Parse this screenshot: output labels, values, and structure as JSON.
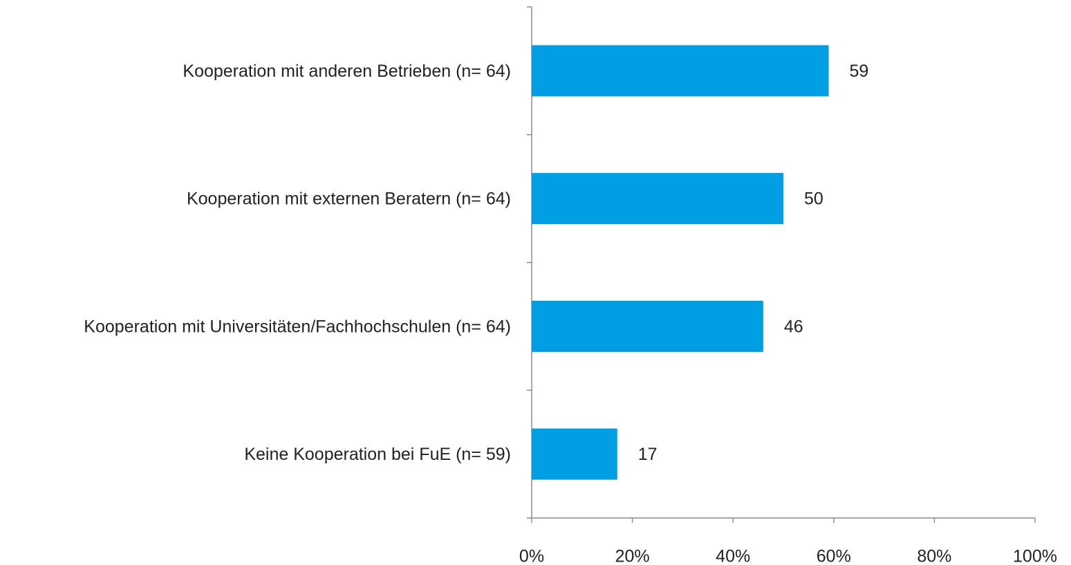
{
  "chart_data": {
    "type": "barh",
    "categories": [
      "Kooperation mit anderen Betrieben (n= 64)",
      "Kooperation mit externen Beratern (n= 64)",
      "Kooperation mit Universitäten/Fachhochschulen (n= 64)",
      "Keine Kooperation bei FuE (n= 59)"
    ],
    "values": [
      59,
      50,
      46,
      17
    ],
    "color": "#009fe3",
    "xlim": [
      0,
      100
    ],
    "xticks": [
      {
        "value": 0,
        "label": "0%"
      },
      {
        "value": 20,
        "label": "20%"
      },
      {
        "value": 40,
        "label": "40%"
      },
      {
        "value": 60,
        "label": "60%"
      },
      {
        "value": 80,
        "label": "80%"
      },
      {
        "value": 100,
        "label": "100%"
      }
    ]
  }
}
